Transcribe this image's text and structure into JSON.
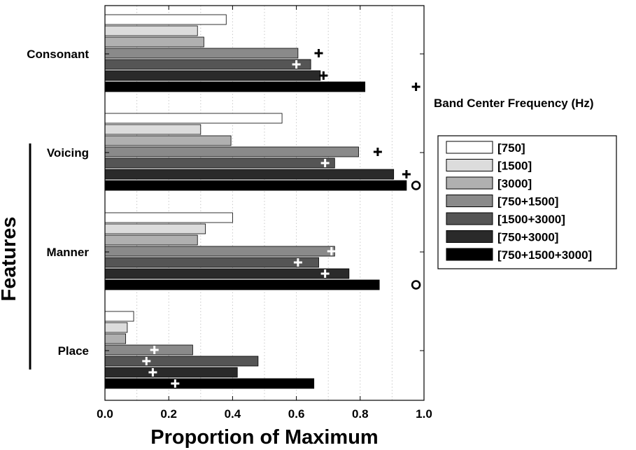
{
  "chart_data": {
    "type": "bar",
    "orientation": "horizontal",
    "categories": [
      "Consonant",
      "Voicing",
      "Manner",
      "Place"
    ],
    "xlabel": "Proportion of Maximum",
    "ylabel": "Features",
    "xlim": [
      0.0,
      1.0
    ],
    "xticks": [
      "0.0",
      "0.2",
      "0.4",
      "0.6",
      "0.8",
      "1.0"
    ],
    "grid": "vertical dotted",
    "legend_title": "Band Center Frequency (Hz)",
    "legend_position": "right",
    "series": [
      {
        "name": "[750]",
        "color": "#ffffff",
        "values": [
          0.38,
          0.555,
          0.4,
          0.09
        ]
      },
      {
        "name": "[1500]",
        "color": "#dcdcdc",
        "values": [
          0.29,
          0.3,
          0.315,
          0.07
        ]
      },
      {
        "name": "[3000]",
        "color": "#b0b0b0",
        "values": [
          0.31,
          0.395,
          0.29,
          0.065
        ]
      },
      {
        "name": "[750+1500]",
        "color": "#8a8a8a",
        "values": [
          0.605,
          0.795,
          0.72,
          0.275
        ]
      },
      {
        "name": "[1500+3000]",
        "color": "#555555",
        "values": [
          0.645,
          0.72,
          0.67,
          0.48
        ]
      },
      {
        "name": "[750+3000]",
        "color": "#2a2a2a",
        "values": [
          0.675,
          0.905,
          0.765,
          0.415
        ]
      },
      {
        "name": "[750+1500+3000]",
        "color": "#000000",
        "values": [
          0.815,
          0.945,
          0.86,
          0.655
        ]
      }
    ],
    "markers": [
      {
        "category": 0,
        "series": 3,
        "x": 0.67,
        "symbol": "plus",
        "color": "black"
      },
      {
        "category": 0,
        "series": 4,
        "x": 0.6,
        "symbol": "plus",
        "color": "white"
      },
      {
        "category": 0,
        "series": 5,
        "x": 0.685,
        "symbol": "plus",
        "color": "black"
      },
      {
        "category": 0,
        "series": 6,
        "x": 0.975,
        "symbol": "plus",
        "color": "black"
      },
      {
        "category": 1,
        "series": 3,
        "x": 0.855,
        "symbol": "plus",
        "color": "black"
      },
      {
        "category": 1,
        "series": 4,
        "x": 0.69,
        "symbol": "plus",
        "color": "white"
      },
      {
        "category": 1,
        "series": 5,
        "x": 0.945,
        "symbol": "plus",
        "color": "black"
      },
      {
        "category": 1,
        "series": 6,
        "x": 0.975,
        "symbol": "circle",
        "color": "black"
      },
      {
        "category": 2,
        "series": 3,
        "x": 0.71,
        "symbol": "plus",
        "color": "white"
      },
      {
        "category": 2,
        "series": 4,
        "x": 0.605,
        "symbol": "plus",
        "color": "white"
      },
      {
        "category": 2,
        "series": 5,
        "x": 0.69,
        "symbol": "plus",
        "color": "white"
      },
      {
        "category": 2,
        "series": 6,
        "x": 0.975,
        "symbol": "circle",
        "color": "black"
      },
      {
        "category": 3,
        "series": 3,
        "x": 0.155,
        "symbol": "plus",
        "color": "white"
      },
      {
        "category": 3,
        "series": 4,
        "x": 0.13,
        "symbol": "plus",
        "color": "white"
      },
      {
        "category": 3,
        "series": 5,
        "x": 0.15,
        "symbol": "plus",
        "color": "white"
      },
      {
        "category": 3,
        "series": 6,
        "x": 0.22,
        "symbol": "plus",
        "color": "white"
      }
    ]
  }
}
